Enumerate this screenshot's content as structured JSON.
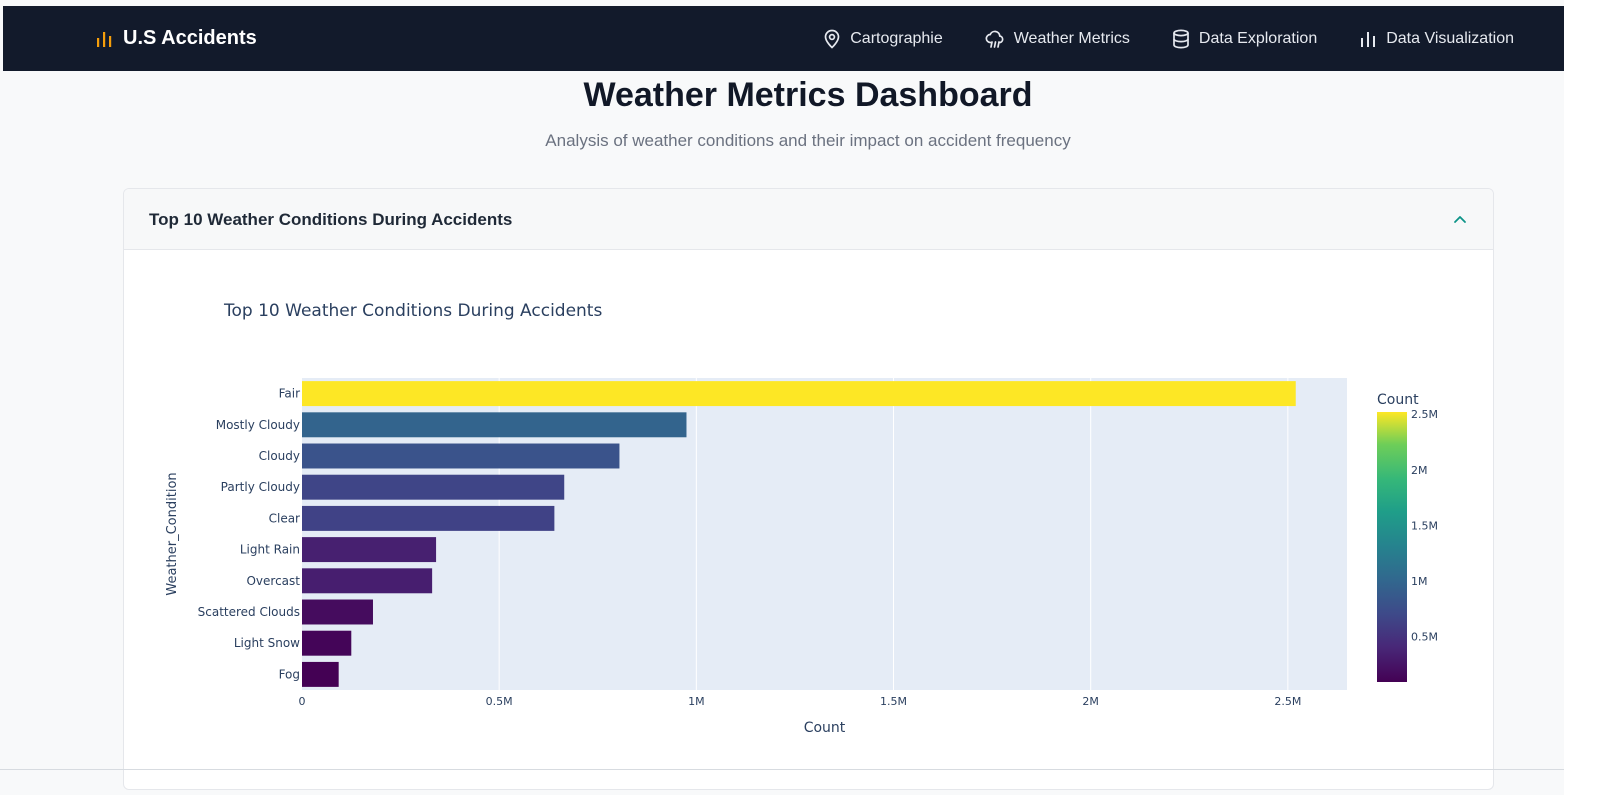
{
  "brand": {
    "name": "U.S Accidents",
    "icon": "bar-chart-icon",
    "accent": "#f59e0b"
  },
  "nav": {
    "items": [
      {
        "label": "Cartographie",
        "icon": "map-pin-icon"
      },
      {
        "label": "Weather Metrics",
        "icon": "cloud-rain-icon"
      },
      {
        "label": "Data Exploration",
        "icon": "database-icon"
      },
      {
        "label": "Data Visualization",
        "icon": "bar-chart-icon"
      }
    ]
  },
  "page": {
    "title": "Weather Metrics Dashboard",
    "subtitle": "Analysis of weather conditions and their impact on accident frequency"
  },
  "card": {
    "title": "Top 10 Weather Conditions During Accidents",
    "collapse_icon": "chevron-up-icon",
    "accent": "#0d9488"
  },
  "chart_data": {
    "type": "bar",
    "orientation": "horizontal",
    "title": "Top 10 Weather Conditions During Accidents",
    "xlabel": "Count",
    "ylabel": "Weather_Condition",
    "categories": [
      "Fair",
      "Mostly Cloudy",
      "Cloudy",
      "Partly Cloudy",
      "Clear",
      "Light Rain",
      "Overcast",
      "Scattered Clouds",
      "Light Snow",
      "Fog"
    ],
    "values": [
      2520000,
      975000,
      805000,
      665000,
      640000,
      340000,
      330000,
      180000,
      125000,
      93000
    ],
    "xlim": [
      0,
      2650000
    ],
    "xticks": [
      0,
      500000,
      1000000,
      1500000,
      2000000,
      2500000
    ],
    "xtick_labels": [
      "0",
      "0.5M",
      "1M",
      "1.5M",
      "2M",
      "2.5M"
    ],
    "colorbar": {
      "title": "Count",
      "colorscale": "Viridis",
      "range": [
        93000,
        2520000
      ],
      "ticks": [
        500000,
        1000000,
        1500000,
        2000000,
        2500000
      ],
      "tick_labels": [
        "0.5M",
        "1M",
        "1.5M",
        "2M",
        "2.5M"
      ]
    },
    "plot_bgcolor": "#e5ecf6",
    "grid": true
  }
}
